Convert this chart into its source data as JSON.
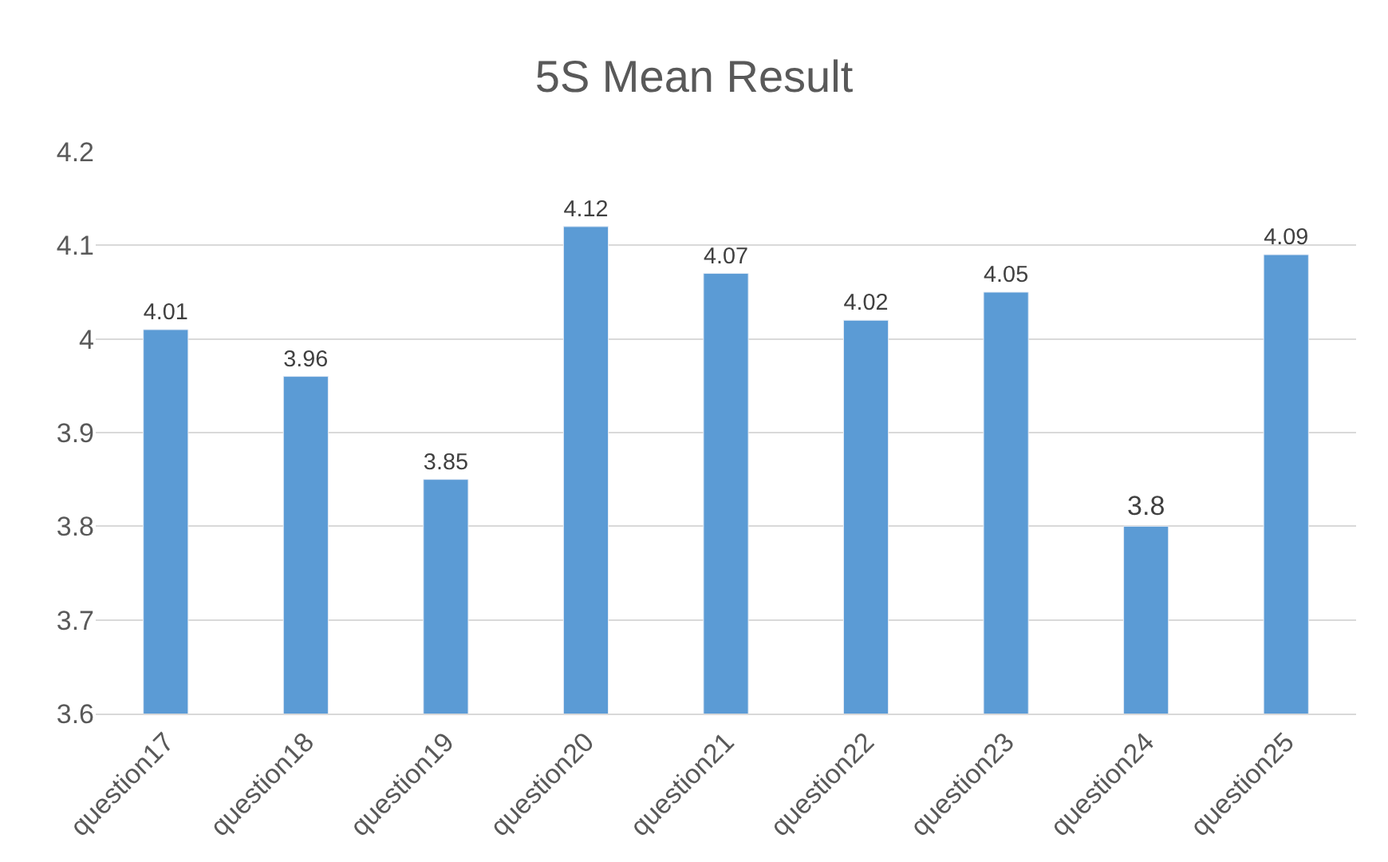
{
  "chart_data": {
    "type": "bar",
    "title": "5S Mean Result",
    "categories": [
      "question17",
      "question18",
      "question19",
      "question20",
      "question21",
      "question22",
      "question23",
      "question24",
      "question25"
    ],
    "values": [
      4.01,
      3.96,
      3.85,
      4.12,
      4.07,
      4.02,
      4.05,
      3.8,
      4.09
    ],
    "color": "#5b9bd5",
    "ylim": [
      3.6,
      4.2
    ],
    "yticks": [
      3.6,
      3.7,
      3.8,
      3.9,
      4,
      4.1,
      4.2
    ],
    "grid": "y",
    "data_labels": true,
    "legend": false
  }
}
